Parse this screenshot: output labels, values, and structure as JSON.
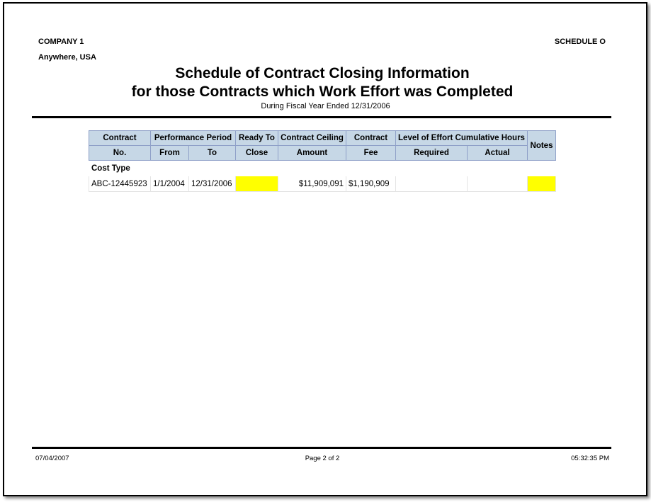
{
  "header": {
    "company": "COMPANY 1",
    "location": "Anywhere, USA",
    "schedule": "SCHEDULE O",
    "title_line1": "Schedule of Contract Closing Information",
    "title_line2": "for those Contracts which Work Effort was Completed",
    "subtitle": "During Fiscal Year Ended 12/31/2006"
  },
  "table": {
    "headers": {
      "contract": "Contract",
      "contract_no": "No.",
      "performance_period": "Performance Period",
      "from": "From",
      "to": "To",
      "ready_to": "Ready To",
      "close": "Close",
      "ceiling": "Contract Ceiling",
      "amount": "Amount",
      "contract_fee1": "Contract",
      "fee": "Fee",
      "loe": "Level of Effort Cumulative Hours",
      "required": "Required",
      "actual": "Actual",
      "notes": "Notes"
    },
    "group": "Cost Type",
    "rows": [
      {
        "contract_no": "ABC-12445923",
        "from": "1/1/2004",
        "to": "12/31/2006",
        "ready_to_close": "",
        "amount": "$11,909,091",
        "fee": "$1,190,909",
        "required": "",
        "actual": "",
        "notes": ""
      }
    ],
    "highlight_color": "#ffff00",
    "header_color": "#c6d7e6"
  },
  "footer": {
    "date": "07/04/2007",
    "page": "Page 2 of 2",
    "time": "05:32:35 PM"
  }
}
